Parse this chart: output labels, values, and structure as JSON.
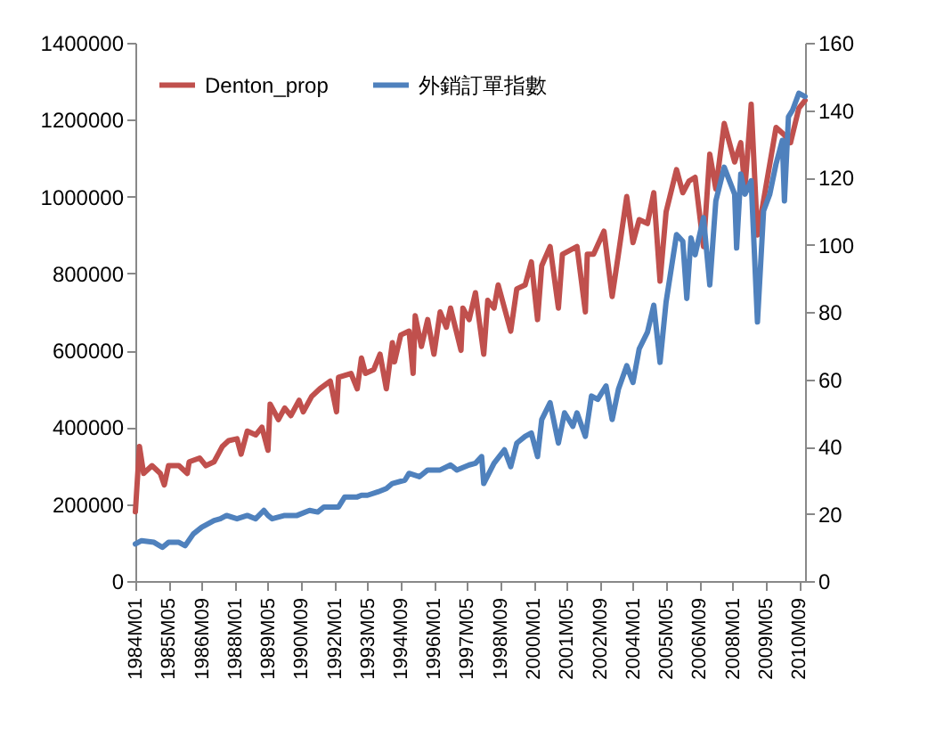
{
  "chart_data": {
    "type": "line",
    "legend": "top left",
    "marker": "none",
    "line_style": "solid",
    "grid": false,
    "xlim": [
      "1984-01",
      "2010-12"
    ],
    "xticks": [
      {
        "value": "1984-01",
        "label": "1984M01"
      },
      {
        "value": "1985-05",
        "label": "1985M05"
      },
      {
        "value": "1986-09",
        "label": "1986M09"
      },
      {
        "value": "1988-01",
        "label": "1988M01"
      },
      {
        "value": "1989-05",
        "label": "1989M05"
      },
      {
        "value": "1990-09",
        "label": "1990M09"
      },
      {
        "value": "1992-01",
        "label": "1992M01"
      },
      {
        "value": "1993-05",
        "label": "1993M05"
      },
      {
        "value": "1994-09",
        "label": "1994M09"
      },
      {
        "value": "1996-01",
        "label": "1996M01"
      },
      {
        "value": "1997-05",
        "label": "1997M05"
      },
      {
        "value": "1998-09",
        "label": "1998M09"
      },
      {
        "value": "2000-01",
        "label": "2000M01"
      },
      {
        "value": "2001-05",
        "label": "2001M05"
      },
      {
        "value": "2002-09",
        "label": "2002M09"
      },
      {
        "value": "2004-01",
        "label": "2004M01"
      },
      {
        "value": "2005-05",
        "label": "2005M05"
      },
      {
        "value": "2006-09",
        "label": "2006M09"
      },
      {
        "value": "2008-01",
        "label": "2008M01"
      },
      {
        "value": "2009-05",
        "label": "2009M05"
      },
      {
        "value": "2010-09",
        "label": "2010M09"
      }
    ],
    "ylim": [
      0,
      1400000
    ],
    "yticks": [
      0,
      200000,
      400000,
      600000,
      800000,
      1000000,
      1200000,
      1400000
    ],
    "y2lim": [
      0,
      160
    ],
    "y2ticks": [
      0,
      20,
      40,
      60,
      80,
      100,
      120,
      140,
      160
    ],
    "series": [
      {
        "name": "Denton_prop",
        "color": "#c0504d",
        "x": [
          "1984-01",
          "1984-03",
          "1984-05",
          "1984-09",
          "1985-01",
          "1985-03",
          "1985-05",
          "1985-10",
          "1986-02",
          "1986-03",
          "1986-08",
          "1986-11",
          "1987-03",
          "1987-07",
          "1987-10",
          "1988-02",
          "1988-04",
          "1988-07",
          "1988-11",
          "1989-02",
          "1989-05",
          "1989-06",
          "1989-10",
          "1990-01",
          "1990-04",
          "1990-08",
          "1990-10",
          "1991-02",
          "1991-06",
          "1991-11",
          "1992-02",
          "1992-03",
          "1992-09",
          "1992-12",
          "1993-02",
          "1993-04",
          "1993-08",
          "1993-11",
          "1994-02",
          "1994-05",
          "1994-06",
          "1994-09",
          "1995-01",
          "1995-03",
          "1995-04",
          "1995-07",
          "1995-10",
          "1996-01",
          "1996-04",
          "1996-07",
          "1996-09",
          "1997-02",
          "1997-03",
          "1997-06",
          "1997-09",
          "1998-01",
          "1998-03",
          "1998-06",
          "1998-08",
          "1999-02",
          "1999-05",
          "1999-09",
          "1999-12",
          "2000-03",
          "2000-05",
          "2000-09",
          "2001-01",
          "2001-03",
          "2001-10",
          "2002-02",
          "2002-03",
          "2002-06",
          "2002-11",
          "2003-03",
          "2003-06",
          "2003-10",
          "2004-01",
          "2004-04",
          "2004-08",
          "2004-11",
          "2005-02",
          "2005-05",
          "2005-10",
          "2006-01",
          "2006-04",
          "2006-07",
          "2006-11",
          "2007-02",
          "2007-05",
          "2007-09",
          "2008-02",
          "2008-05",
          "2008-07",
          "2008-10",
          "2009-01",
          "2009-04",
          "2009-10",
          "2010-02",
          "2010-05",
          "2010-09",
          "2010-12"
        ],
        "values": [
          180000,
          350000,
          280000,
          300000,
          280000,
          250000,
          300000,
          300000,
          280000,
          310000,
          320000,
          300000,
          310000,
          350000,
          365000,
          370000,
          330000,
          390000,
          380000,
          400000,
          340000,
          460000,
          420000,
          450000,
          430000,
          470000,
          440000,
          480000,
          500000,
          520000,
          440000,
          530000,
          540000,
          500000,
          580000,
          540000,
          550000,
          590000,
          500000,
          620000,
          570000,
          640000,
          650000,
          540000,
          690000,
          610000,
          680000,
          590000,
          700000,
          660000,
          710000,
          600000,
          710000,
          680000,
          750000,
          590000,
          730000,
          710000,
          770000,
          650000,
          760000,
          770000,
          830000,
          680000,
          820000,
          870000,
          710000,
          850000,
          870000,
          700000,
          850000,
          850000,
          910000,
          740000,
          850000,
          1000000,
          880000,
          940000,
          930000,
          1010000,
          780000,
          960000,
          1070000,
          1010000,
          1040000,
          1050000,
          870000,
          1110000,
          1020000,
          1190000,
          1090000,
          1140000,
          1020000,
          1240000,
          900000,
          990000,
          1180000,
          1160000,
          1140000,
          1230000,
          1250000
        ]
      },
      {
        "name": "外銷訂單指數",
        "color": "#4f81bd",
        "axis": "y2",
        "x": [
          "1984-01",
          "1984-04",
          "1984-10",
          "1985-02",
          "1985-05",
          "1985-10",
          "1986-01",
          "1986-05",
          "1986-09",
          "1987-03",
          "1987-06",
          "1987-09",
          "1988-02",
          "1988-07",
          "1988-11",
          "1989-03",
          "1989-05",
          "1989-07",
          "1990-01",
          "1990-07",
          "1991-01",
          "1991-05",
          "1991-08",
          "1992-03",
          "1992-06",
          "1992-12",
          "1993-02",
          "1993-05",
          "1993-10",
          "1994-02",
          "1994-05",
          "1994-11",
          "1995-01",
          "1995-06",
          "1995-10",
          "1996-04",
          "1996-09",
          "1996-12",
          "1997-06",
          "1997-09",
          "1997-12",
          "1998-01",
          "1998-06",
          "1998-11",
          "1999-02",
          "1999-05",
          "1999-09",
          "1999-12",
          "2000-03",
          "2000-05",
          "2000-09",
          "2001-01",
          "2001-04",
          "2001-08",
          "2001-10",
          "2002-02",
          "2002-05",
          "2002-08",
          "2002-12",
          "2003-03",
          "2003-06",
          "2003-10",
          "2004-01",
          "2004-04",
          "2004-08",
          "2004-11",
          "2005-02",
          "2005-05",
          "2005-10",
          "2006-01",
          "2006-03",
          "2006-05",
          "2006-07",
          "2006-11",
          "2007-02",
          "2007-05",
          "2007-09",
          "2008-02",
          "2008-03",
          "2008-05",
          "2008-07",
          "2008-10",
          "2009-01",
          "2009-04",
          "2009-07",
          "2009-10",
          "2010-01",
          "2010-02",
          "2010-04",
          "2010-06",
          "2010-09",
          "2010-12"
        ],
        "values": [
          11,
          12,
          11.5,
          10,
          11.5,
          11.5,
          10.5,
          14,
          16,
          18,
          18.5,
          19.5,
          18.5,
          19.5,
          18.5,
          21,
          19.5,
          18.5,
          19.5,
          19.5,
          21,
          20.5,
          22,
          22,
          25,
          25,
          25.5,
          25.5,
          26.5,
          27.5,
          29,
          30,
          32,
          31,
          33,
          33,
          34.5,
          33,
          34.5,
          35,
          37,
          29,
          35,
          39,
          34,
          41,
          43,
          44,
          37,
          48,
          53,
          41,
          50,
          46,
          50,
          43,
          55,
          54,
          58,
          48,
          57,
          64,
          59,
          69,
          74,
          82,
          65,
          83,
          103,
          101,
          84,
          102,
          97,
          108,
          88,
          113,
          123,
          115,
          99,
          121,
          115,
          119,
          77,
          110,
          115,
          124,
          131,
          113,
          138,
          140,
          145,
          144
        ]
      }
    ]
  }
}
